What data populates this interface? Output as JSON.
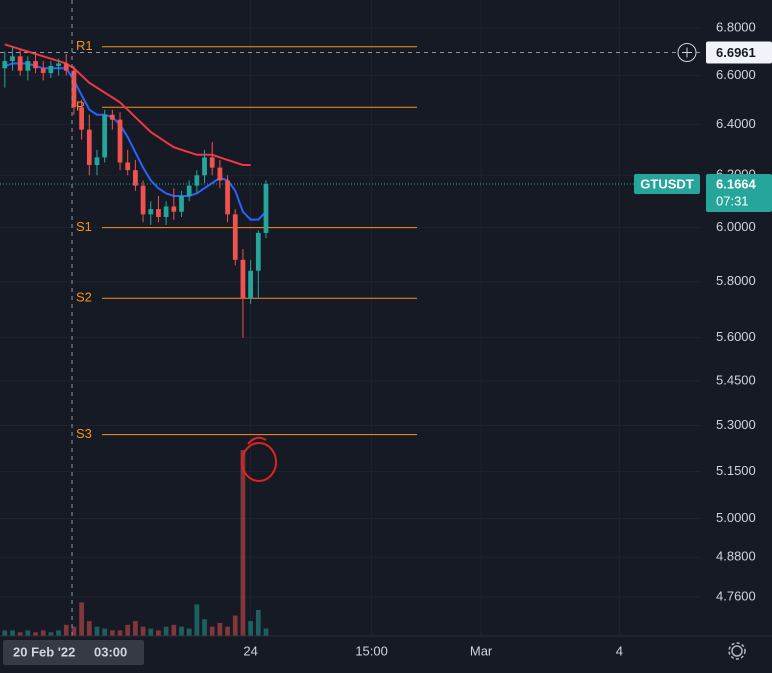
{
  "chart_data": {
    "type": "candlestick",
    "symbol": "GTUSDT",
    "log_scale": true,
    "up_color": "#26a69a",
    "down_color": "#ef5350",
    "xlim": [
      -34.5,
      330
    ],
    "xticks": [
      {
        "value": 96,
        "label": "24"
      },
      {
        "value": 159,
        "label": "15:00"
      },
      {
        "value": 216,
        "label": "Mar"
      },
      {
        "value": 288,
        "label": "4"
      }
    ],
    "ylim": [
      4.645,
      6.92
    ],
    "yticks": [
      {
        "value": 6.8,
        "label": "6.8000"
      },
      {
        "value": 6.6,
        "label": "6.6000"
      },
      {
        "value": 6.4,
        "label": "6.4000"
      },
      {
        "value": 6.2,
        "label": "6.2000"
      },
      {
        "value": 6.0,
        "label": "6.0000"
      },
      {
        "value": 5.8,
        "label": "5.8000"
      },
      {
        "value": 5.6,
        "label": "5.6000"
      },
      {
        "value": 5.45,
        "label": "5.4500"
      },
      {
        "value": 5.3,
        "label": "5.3000"
      },
      {
        "value": 5.15,
        "label": "5.1500"
      },
      {
        "value": 5.0,
        "label": "5.0000"
      },
      {
        "value": 4.88,
        "label": "4.8800"
      },
      {
        "value": 4.76,
        "label": "4.7600"
      }
    ],
    "x": [
      -32,
      -28,
      -24,
      -20,
      -16,
      -12,
      -8,
      -4,
      0,
      4,
      8,
      12,
      16,
      20,
      24,
      28,
      32,
      36,
      40,
      44,
      48,
      52,
      56,
      60,
      64,
      68,
      72,
      76,
      80,
      84,
      88,
      92,
      96,
      100,
      104
    ],
    "open": [
      6.63,
      6.66,
      6.68,
      6.62,
      6.66,
      6.63,
      6.61,
      6.64,
      6.65,
      6.62,
      6.47,
      6.38,
      6.24,
      6.27,
      6.44,
      6.42,
      6.25,
      6.22,
      6.16,
      6.05,
      6.07,
      6.04,
      6.08,
      6.06,
      6.12,
      6.16,
      6.2,
      6.27,
      6.23,
      6.18,
      6.05,
      5.88,
      5.74,
      5.84,
      5.98
    ],
    "high": [
      6.7,
      6.72,
      6.71,
      6.68,
      6.7,
      6.66,
      6.66,
      6.67,
      6.69,
      6.64,
      6.5,
      6.44,
      6.3,
      6.46,
      6.46,
      6.45,
      6.3,
      6.26,
      6.18,
      6.1,
      6.12,
      6.1,
      6.15,
      6.14,
      6.18,
      6.22,
      6.3,
      6.33,
      6.26,
      6.2,
      6.07,
      5.92,
      5.88,
      5.99,
      6.18
    ],
    "low": [
      6.55,
      6.62,
      6.6,
      6.58,
      6.61,
      6.58,
      6.59,
      6.6,
      6.6,
      6.44,
      6.34,
      6.2,
      6.2,
      6.25,
      6.38,
      6.22,
      6.2,
      6.14,
      6.02,
      6.01,
      6.02,
      6.01,
      6.03,
      6.04,
      6.1,
      6.13,
      6.17,
      6.2,
      6.15,
      6.02,
      5.86,
      5.6,
      5.72,
      5.74,
      5.96
    ],
    "close": [
      6.66,
      6.68,
      6.62,
      6.66,
      6.63,
      6.61,
      6.64,
      6.65,
      6.62,
      6.47,
      6.38,
      6.24,
      6.27,
      6.44,
      6.42,
      6.25,
      6.22,
      6.16,
      6.05,
      6.07,
      6.04,
      6.08,
      6.06,
      6.12,
      6.16,
      6.2,
      6.27,
      6.23,
      6.18,
      6.05,
      5.88,
      5.74,
      5.84,
      5.98,
      6.1664
    ],
    "volume": [
      3,
      3,
      2,
      3,
      2,
      3,
      2,
      3,
      6,
      5,
      18,
      8,
      5,
      4,
      3,
      3,
      6,
      8,
      5,
      4,
      3,
      5,
      6,
      5,
      4,
      17,
      9,
      5,
      7,
      5,
      11,
      100,
      8,
      14,
      4
    ],
    "series": [
      {
        "color": "#f23645",
        "values": [
          6.73,
          6.72,
          6.71,
          6.7,
          6.69,
          6.68,
          6.67,
          6.66,
          6.65,
          6.63,
          6.6,
          6.57,
          6.55,
          6.53,
          6.51,
          6.49,
          6.46,
          6.43,
          6.4,
          6.37,
          6.35,
          6.33,
          6.31,
          6.3,
          6.29,
          6.28,
          6.28,
          6.28,
          6.27,
          6.26,
          6.25,
          6.24,
          6.24,
          null,
          null
        ]
      },
      {
        "color": "#2962ff",
        "values": [
          6.64,
          6.65,
          6.65,
          6.65,
          6.64,
          6.63,
          6.63,
          6.63,
          6.63,
          6.58,
          6.52,
          6.46,
          6.44,
          6.44,
          6.43,
          6.4,
          6.35,
          6.29,
          6.23,
          6.18,
          6.15,
          6.13,
          6.12,
          6.12,
          6.12,
          6.13,
          6.15,
          6.17,
          6.19,
          6.18,
          6.14,
          6.06,
          6.03,
          6.03,
          6.06
        ]
      }
    ],
    "levels": [
      {
        "label": "R1",
        "value": 6.72
      },
      {
        "label": "P",
        "value": 6.47
      },
      {
        "label": "S1",
        "value": 6.0
      },
      {
        "label": "S2",
        "value": 5.74
      },
      {
        "label": "S3",
        "value": 5.27
      }
    ],
    "level_color": "#f7931a",
    "crosshair": {
      "x": 3,
      "date": "20 Feb '22",
      "time": "03:00",
      "price": 6.6961
    },
    "last_price": 6.1664,
    "countdown": "07:31"
  }
}
